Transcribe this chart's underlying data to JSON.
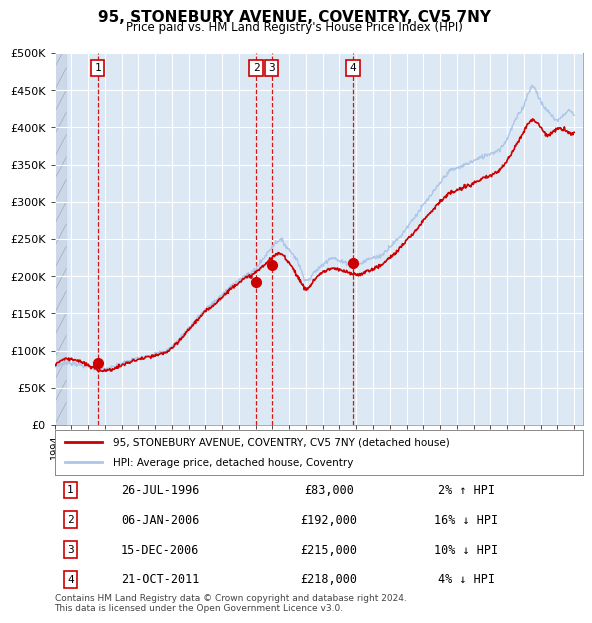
{
  "title": "95, STONEBURY AVENUE, COVENTRY, CV5 7NY",
  "subtitle": "Price paid vs. HM Land Registry's House Price Index (HPI)",
  "footer": "Contains HM Land Registry data © Crown copyright and database right 2024.\nThis data is licensed under the Open Government Licence v3.0.",
  "legend_line1": "95, STONEBURY AVENUE, COVENTRY, CV5 7NY (detached house)",
  "legend_line2": "HPI: Average price, detached house, Coventry",
  "transactions": [
    {
      "num": 1,
      "date": "26-JUL-1996",
      "price": 83000,
      "pct": "2%",
      "dir": "↑",
      "year": 1996.57
    },
    {
      "num": 2,
      "date": "06-JAN-2006",
      "price": 192000,
      "pct": "16%",
      "dir": "↓",
      "year": 2006.02
    },
    {
      "num": 3,
      "date": "15-DEC-2006",
      "price": 215000,
      "pct": "10%",
      "dir": "↓",
      "year": 2006.96
    },
    {
      "num": 4,
      "date": "21-OCT-2011",
      "price": 218000,
      "pct": "4%",
      "dir": "↓",
      "year": 2011.8
    }
  ],
  "hpi_color": "#aec6e8",
  "property_color": "#cc0000",
  "background_color": "#dce9f5",
  "hatch_color": "#b0b8c8",
  "ylim": [
    0,
    500000
  ],
  "yticks": [
    0,
    50000,
    100000,
    150000,
    200000,
    250000,
    300000,
    350000,
    400000,
    450000,
    500000
  ],
  "xlim_start": 1994.0,
  "xlim_end": 2025.5
}
